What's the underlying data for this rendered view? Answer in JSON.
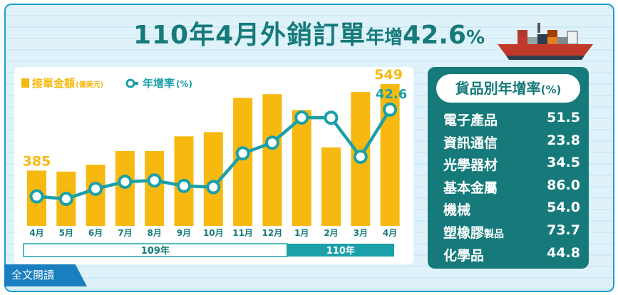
{
  "title": {
    "part1": "110年4月外銷訂單",
    "part2": "年增",
    "part3": "42.6",
    "part4": "%"
  },
  "chart_data": {
    "type": "bar+line",
    "categories": [
      "4月",
      "5月",
      "6月",
      "7月",
      "8月",
      "9月",
      "10月",
      "11月",
      "12月",
      "1月",
      "2月",
      "3月",
      "4月"
    ],
    "year_groups": [
      {
        "label": "109年",
        "count": 9
      },
      {
        "label": "110年",
        "count": 4
      }
    ],
    "series": [
      {
        "name": "接單金額",
        "unit": "(億美元)",
        "type": "bar",
        "color": "#f7b90f",
        "values": [
          385,
          383,
          396,
          422,
          422,
          450,
          458,
          523,
          530,
          500,
          429,
          534,
          549
        ],
        "labels": {
          "0": "385",
          "12": "549"
        }
      },
      {
        "name": "年增率",
        "unit": "(%)",
        "type": "line",
        "color": "#1aa0a8",
        "values": [
          -5.4,
          -6.8,
          -1.2,
          2.7,
          3.4,
          0.4,
          -0.3,
          18.4,
          24.3,
          38.2,
          38.1,
          16.5,
          42.6
        ],
        "labels": {
          "12": "42.6"
        }
      }
    ],
    "bar_ylim": [
      0,
      600
    ],
    "line_ylim": [
      -20,
      55
    ]
  },
  "goods_panel": {
    "title": "貨品別年增率",
    "title_unit": "(%)",
    "items": [
      {
        "name": "電子產品",
        "suffix": "",
        "value": "51.5"
      },
      {
        "name": "資訊通信",
        "suffix": "",
        "value": "23.8"
      },
      {
        "name": "光學器材",
        "suffix": "",
        "value": "34.5"
      },
      {
        "name": "基本金屬",
        "suffix": "",
        "value": "86.0"
      },
      {
        "name": "機械",
        "suffix": "",
        "value": "54.0"
      },
      {
        "name": "塑橡膠",
        "suffix": "製品",
        "value": "73.7"
      },
      {
        "name": "化學品",
        "suffix": "",
        "value": "44.8"
      }
    ]
  },
  "full_text_link": "全文閱讀",
  "colors": {
    "teal": "#167a7a",
    "bar": "#f7b90f",
    "line": "#1aa0a8",
    "bg_frame": "#1aa0c8"
  }
}
